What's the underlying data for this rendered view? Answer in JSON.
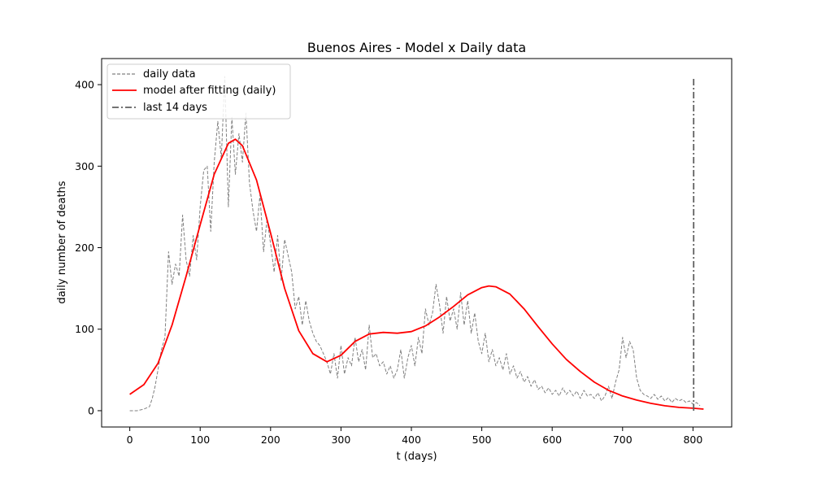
{
  "chart_data": {
    "type": "line",
    "title": "Buenos Aires - Model x Daily data",
    "xlabel": "t (days)",
    "ylabel": "daily number of deaths",
    "xlim": [
      -40,
      855
    ],
    "ylim": [
      -20,
      432
    ],
    "xticks": [
      0,
      100,
      200,
      300,
      400,
      500,
      600,
      700,
      800
    ],
    "yticks": [
      0,
      100,
      200,
      300,
      400
    ],
    "grid": false,
    "legend_position": "top-left",
    "series": [
      {
        "name": "daily data",
        "color": "#808080",
        "style": "dashed",
        "x": [
          0,
          10,
          20,
          28,
          32,
          36,
          40,
          45,
          50,
          55,
          60,
          65,
          70,
          75,
          80,
          85,
          90,
          95,
          100,
          105,
          110,
          115,
          120,
          125,
          130,
          135,
          140,
          145,
          150,
          155,
          160,
          165,
          170,
          175,
          180,
          185,
          190,
          195,
          200,
          205,
          210,
          215,
          220,
          225,
          230,
          235,
          240,
          245,
          250,
          255,
          260,
          265,
          270,
          275,
          280,
          285,
          290,
          295,
          300,
          305,
          310,
          315,
          320,
          325,
          330,
          335,
          340,
          345,
          350,
          355,
          360,
          365,
          370,
          375,
          380,
          385,
          390,
          395,
          400,
          405,
          410,
          415,
          420,
          425,
          430,
          435,
          440,
          445,
          450,
          455,
          460,
          465,
          470,
          475,
          480,
          485,
          490,
          495,
          500,
          505,
          510,
          515,
          520,
          525,
          530,
          535,
          540,
          545,
          550,
          555,
          560,
          565,
          570,
          575,
          580,
          585,
          590,
          595,
          600,
          605,
          610,
          615,
          620,
          625,
          630,
          635,
          640,
          645,
          650,
          655,
          660,
          665,
          670,
          675,
          680,
          685,
          690,
          695,
          700,
          705,
          710,
          715,
          720,
          725,
          730,
          735,
          740,
          745,
          750,
          755,
          760,
          765,
          770,
          775,
          780,
          785,
          790,
          795,
          800,
          805,
          810
        ],
        "values": [
          0,
          0,
          2,
          5,
          15,
          30,
          50,
          75,
          90,
          195,
          155,
          180,
          165,
          240,
          185,
          165,
          215,
          185,
          250,
          295,
          300,
          220,
          305,
          355,
          310,
          410,
          250,
          360,
          290,
          340,
          305,
          365,
          280,
          245,
          220,
          265,
          195,
          235,
          205,
          170,
          215,
          160,
          210,
          190,
          170,
          125,
          140,
          105,
          135,
          110,
          95,
          85,
          80,
          70,
          60,
          45,
          70,
          40,
          80,
          45,
          65,
          55,
          90,
          60,
          75,
          50,
          105,
          65,
          70,
          55,
          60,
          45,
          55,
          40,
          50,
          75,
          40,
          65,
          80,
          55,
          90,
          70,
          125,
          105,
          120,
          155,
          130,
          95,
          140,
          110,
          125,
          100,
          145,
          105,
          135,
          95,
          120,
          85,
          70,
          95,
          60,
          75,
          55,
          65,
          50,
          70,
          45,
          55,
          40,
          48,
          35,
          42,
          30,
          38,
          26,
          30,
          22,
          28,
          20,
          25,
          18,
          28,
          20,
          25,
          18,
          24,
          15,
          25,
          18,
          20,
          15,
          22,
          12,
          18,
          30,
          15,
          35,
          50,
          90,
          65,
          85,
          75,
          40,
          25,
          20,
          18,
          15,
          20,
          14,
          18,
          12,
          16,
          10,
          15,
          12,
          14,
          10,
          12,
          8,
          10,
          6
        ]
      },
      {
        "name": "model after fitting (daily)",
        "color": "#ff0000",
        "style": "solid",
        "x": [
          0,
          20,
          40,
          60,
          80,
          100,
          120,
          140,
          150,
          160,
          180,
          200,
          220,
          240,
          260,
          280,
          300,
          320,
          340,
          360,
          380,
          400,
          420,
          440,
          460,
          480,
          500,
          510,
          520,
          540,
          560,
          580,
          600,
          620,
          640,
          660,
          680,
          700,
          720,
          740,
          760,
          780,
          800,
          815
        ],
        "values": [
          20,
          32,
          58,
          105,
          165,
          228,
          290,
          328,
          333,
          325,
          283,
          218,
          150,
          98,
          70,
          60,
          68,
          85,
          94,
          96,
          95,
          97,
          104,
          115,
          128,
          142,
          151,
          153,
          152,
          143,
          125,
          103,
          82,
          63,
          48,
          35,
          25,
          18,
          13,
          9,
          6,
          4,
          3,
          2
        ]
      },
      {
        "name": "last 14 days",
        "color": "#606060",
        "style": "dashdot",
        "x": [
          801,
          801
        ],
        "values": [
          0,
          410
        ]
      }
    ]
  }
}
